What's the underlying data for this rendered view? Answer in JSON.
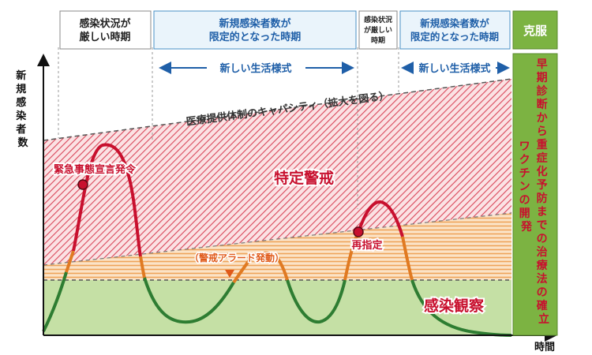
{
  "header": {
    "period1": [
      "感染状況が",
      "厳しい時期"
    ],
    "period2": [
      "新規感染者数が",
      "限定的となった時期"
    ],
    "period3": [
      "感染状況",
      "が厳しい",
      "時期"
    ],
    "period4": [
      "新規感染者数が",
      "限定的となった時期"
    ],
    "overcome": "克服"
  },
  "arrows": {
    "new_lifestyle_1": "新しい生活様式",
    "new_lifestyle_2": "新しい生活様式"
  },
  "axes": {
    "y_label": [
      "新",
      "規",
      "感",
      "染",
      "者",
      "数"
    ],
    "x_label": "時間"
  },
  "labels": {
    "capacity": "医療提供体制のキャパシティ（拡大を図る）",
    "special_alert": "特定警戒",
    "infection_watch": "感染観察",
    "emergency": "緊急事態宣言発令",
    "alert_trigger": "（警戒アラード発動）",
    "redesignation": "再指定"
  },
  "right_panel": {
    "col1": [
      "早",
      "期",
      "診",
      "断",
      "か",
      "ら",
      "重",
      "症",
      "化",
      "予",
      "防",
      "ま",
      "で",
      "の",
      "治",
      "療",
      "法",
      "の",
      "確",
      "立"
    ],
    "col2": [
      "ワ",
      "ク",
      "チ",
      "ン",
      "の",
      "開",
      "発"
    ]
  },
  "colors": {
    "red": "#c8102e",
    "orange": "#e07a22",
    "green": "#2e7d32",
    "blue": "#1f5fa8",
    "panel_green": "#7cb342"
  }
}
